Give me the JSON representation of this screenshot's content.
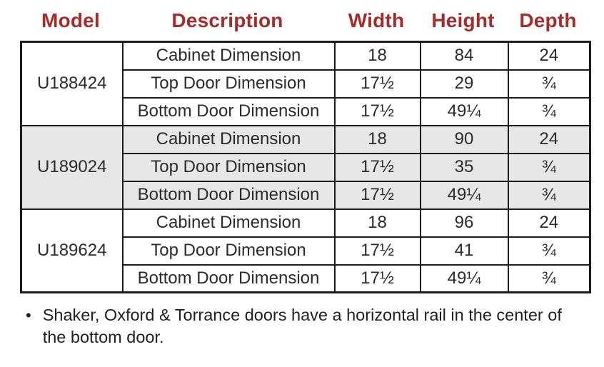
{
  "colors": {
    "header_text": "#a42d2b",
    "body_text": "#2b2b2b",
    "row_shade": "#e7e7e7",
    "border": "#1c1c1c"
  },
  "table": {
    "columns": [
      "Model",
      "Description",
      "Width",
      "Height",
      "Depth"
    ],
    "groups": [
      {
        "model": "U188424",
        "shaded": false,
        "rows": [
          {
            "description": "Cabinet Dimension",
            "width": "18",
            "height": "84",
            "depth": "24"
          },
          {
            "description": "Top Door Dimension",
            "width": "17½",
            "height": "29",
            "depth": "¾"
          },
          {
            "description": "Bottom Door Dimension",
            "width": "17½",
            "height": "49¼",
            "depth": "¾"
          }
        ]
      },
      {
        "model": "U189024",
        "shaded": true,
        "rows": [
          {
            "description": "Cabinet Dimension",
            "width": "18",
            "height": "90",
            "depth": "24"
          },
          {
            "description": "Top Door Dimension",
            "width": "17½",
            "height": "35",
            "depth": "¾"
          },
          {
            "description": "Bottom Door Dimension",
            "width": "17½",
            "height": "49¼",
            "depth": "¾"
          }
        ]
      },
      {
        "model": "U189624",
        "shaded": false,
        "rows": [
          {
            "description": "Cabinet Dimension",
            "width": "18",
            "height": "96",
            "depth": "24"
          },
          {
            "description": "Top Door Dimension",
            "width": "17½",
            "height": "41",
            "depth": "¾"
          },
          {
            "description": "Bottom Door Dimension",
            "width": "17½",
            "height": "49¼",
            "depth": "¾"
          }
        ]
      }
    ]
  },
  "footnote": {
    "bullet": "•",
    "text": "Shaker, Oxford & Torrance doors have a horizontal rail in the center of the bottom door."
  }
}
